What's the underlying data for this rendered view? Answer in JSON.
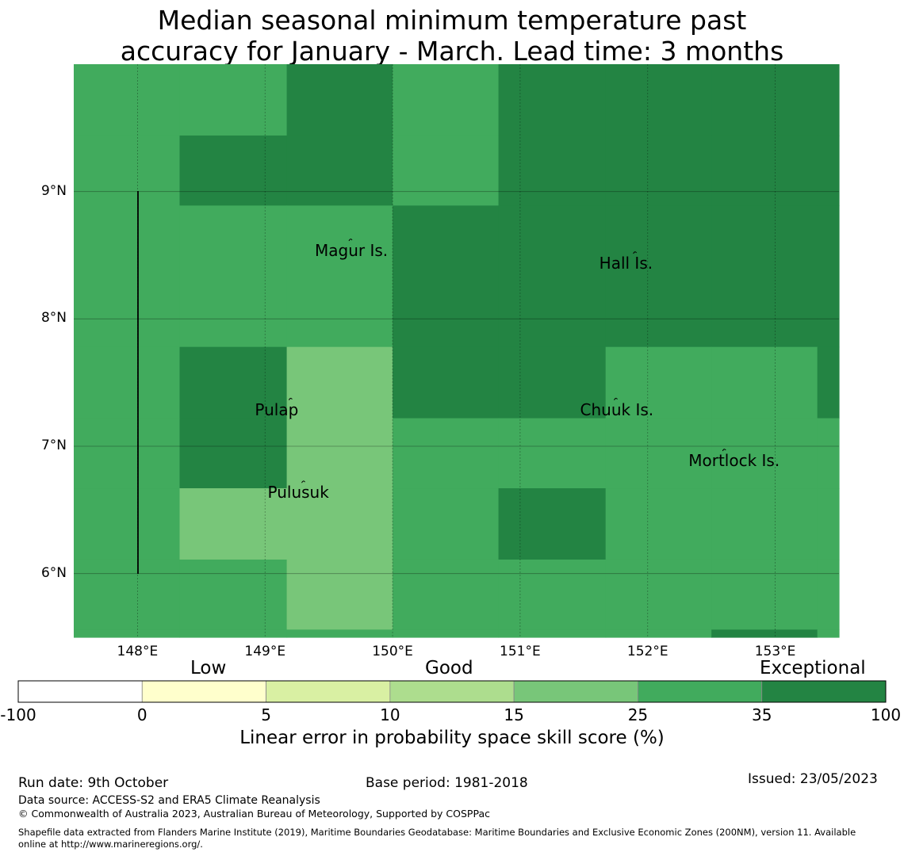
{
  "title": {
    "line1": "Median seasonal minimum temperature past",
    "line2": "accuracy for January - March. Lead time: 3 months"
  },
  "map": {
    "lon_range": [
      147.5,
      153.5
    ],
    "lat_range": [
      5.5,
      10.0
    ],
    "cell_size_deg": 0.833,
    "lon_ticks": [
      {
        "value": 148,
        "label": "148°E"
      },
      {
        "value": 149,
        "label": "149°E"
      },
      {
        "value": 150,
        "label": "150°E"
      },
      {
        "value": 151,
        "label": "151°E"
      },
      {
        "value": 152,
        "label": "152°E"
      },
      {
        "value": 153,
        "label": "153°E"
      }
    ],
    "lat_ticks": [
      {
        "value": 9,
        "label": "9°N"
      },
      {
        "value": 8,
        "label": "8°N"
      },
      {
        "value": 7,
        "label": "7°N"
      },
      {
        "value": 6,
        "label": "6°N"
      }
    ],
    "places": [
      {
        "name": "Magur Is.",
        "lon": 149.67,
        "lat": 8.6
      },
      {
        "name": "Hall Is.",
        "lon": 151.9,
        "lat": 8.5
      },
      {
        "name": "Pulap",
        "lon": 149.2,
        "lat": 7.35
      },
      {
        "name": "Chuuk Is.",
        "lon": 151.75,
        "lat": 7.35
      },
      {
        "name": "Mortlock Is.",
        "lon": 152.6,
        "lat": 6.95
      },
      {
        "name": "Pulusuk",
        "lon": 149.3,
        "lat": 6.7
      }
    ]
  },
  "chart_data": {
    "type": "heatmap",
    "value_meaning": "Linear error in probability space skill score category index (0:-100..0, 1:0..5, 2:5..10, 3:10..15, 4:15..25, 5:25..35, 6:35..100)",
    "lon_edges": [
      147.5,
      148.33,
      149.17,
      150.0,
      150.83,
      151.67,
      152.5,
      153.33,
      153.5
    ],
    "lat_edges": [
      10.0,
      9.44,
      8.89,
      7.78,
      7.22,
      6.67,
      6.11,
      5.56,
      5.5
    ],
    "grid": [
      [
        5,
        5,
        6,
        5,
        6,
        6,
        6,
        6
      ],
      [
        5,
        6,
        6,
        5,
        6,
        6,
        6,
        6
      ],
      [
        5,
        5,
        5,
        6,
        6,
        6,
        6,
        6
      ],
      [
        5,
        6,
        4,
        6,
        6,
        5,
        5,
        6
      ],
      [
        5,
        6,
        4,
        5,
        5,
        5,
        5,
        5
      ],
      [
        5,
        4,
        4,
        5,
        6,
        5,
        5,
        5
      ],
      [
        5,
        5,
        4,
        5,
        5,
        5,
        5,
        5
      ],
      [
        5,
        5,
        5,
        5,
        5,
        5,
        6,
        5
      ]
    ]
  },
  "colorbar": {
    "ticks": [
      "-100",
      "0",
      "5",
      "10",
      "15",
      "25",
      "35",
      "100"
    ],
    "colors": [
      "#ffffff",
      "#ffffcc",
      "#d9f0a3",
      "#addd8e",
      "#78c679",
      "#41ab5d",
      "#238443"
    ],
    "categories": [
      "Low",
      "Good",
      "Exceptional"
    ],
    "label": "Linear error in probability space skill score (%)"
  },
  "footer": {
    "run_date": "Run date: 9th October",
    "base_period": "Base period: 1981-2018",
    "issued": "Issued: 23/05/2023",
    "data_source": "Data source: ACCESS-S2 and ERA5 Climate Reanalysis",
    "copyright": "© Commonwealth of Australia 2023, Australian Bureau of Meteorology, Supported by COSPPac",
    "shapefile_line1": "Shapefile data extracted from Flanders Marine Institute (2019), Maritime Boundaries Geodatabase: Maritime Boundaries and Exclusive Economic Zones (200NM), version 11. Available",
    "shapefile_line2": "online at http://www.marineregions.org/."
  }
}
